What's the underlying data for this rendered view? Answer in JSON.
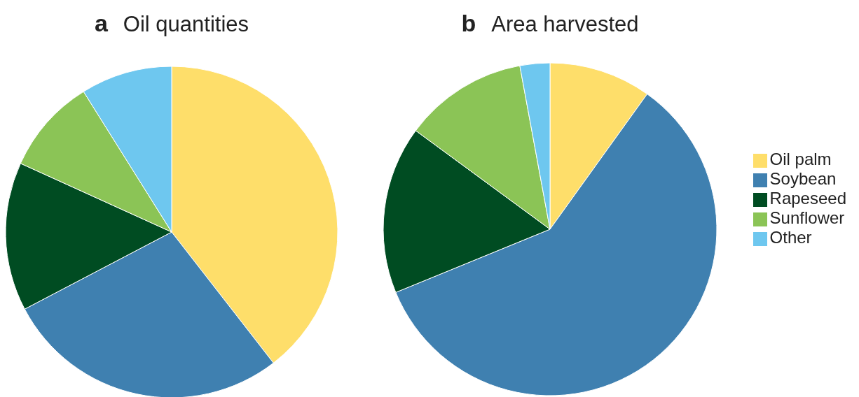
{
  "chart_data": [
    {
      "type": "pie",
      "title": "Oil quantities",
      "annotations": [
        "a"
      ],
      "categories": [
        null,
        null,
        null,
        null,
        null
      ],
      "values": [
        39.5,
        27.8,
        14.5,
        9.3,
        8.9
      ],
      "colors": [
        "#fede6a",
        "#3f80b0",
        "#004c22",
        "#8bc456",
        "#6ec7ef"
      ],
      "legend": false
    },
    {
      "type": "pie",
      "title": "Area harvested",
      "annotations": [
        "b"
      ],
      "categories": [
        "Oil palm",
        "Soybean",
        "Rapeseed",
        "Sunflower",
        "Other"
      ],
      "values": [
        9.9,
        58.9,
        16.3,
        12.0,
        2.9
      ],
      "colors": [
        "#fede6a",
        "#3f80b0",
        "#004c22",
        "#8bc456",
        "#6ec7ef"
      ],
      "legend": "right"
    }
  ]
}
